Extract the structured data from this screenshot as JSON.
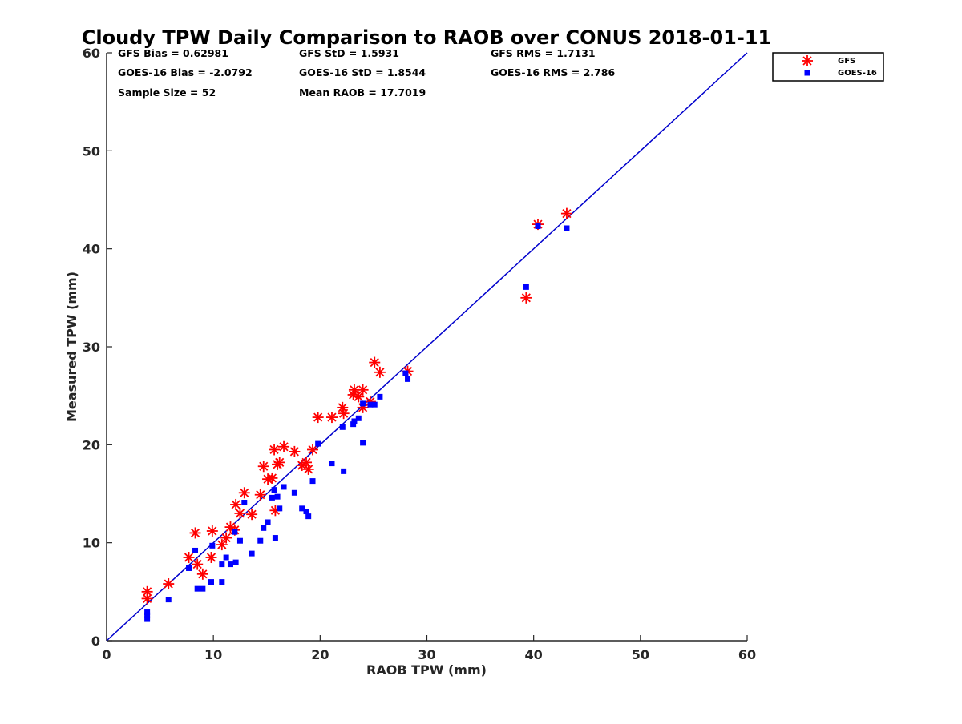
{
  "chart_data": {
    "type": "scatter",
    "title": "Cloudy TPW Daily Comparison to RAOB over CONUS 2018-01-11",
    "xlabel": "RAOB TPW (mm)",
    "ylabel": "Measured TPW (mm)",
    "xlim": [
      0,
      60
    ],
    "ylim": [
      0,
      60
    ],
    "xticks": [
      "0",
      "10",
      "20",
      "30",
      "40",
      "50",
      "60"
    ],
    "yticks": [
      "0",
      "10",
      "20",
      "30",
      "40",
      "50",
      "60"
    ],
    "grid": false,
    "legend_position": "top-right, outside plot",
    "reference_line": {
      "from": [
        0,
        0
      ],
      "to": [
        60,
        60
      ],
      "color": "#0000cc"
    },
    "stats": {
      "gfs_bias": "GFS Bias = 0.62981",
      "goes_bias": "GOES-16 Bias = -2.0792",
      "sample_size": "Sample Size = 52",
      "gfs_std": "GFS StD = 1.5931",
      "goes_std": "GOES-16 StD = 1.8544",
      "mean_raob": "Mean RAOB = 17.7019",
      "gfs_rms": "GFS RMS = 1.7131",
      "goes_rms": "GOES-16 RMS = 2.786"
    },
    "series": [
      {
        "name": "GFS",
        "marker": "asterisk",
        "color": "#ff0000",
        "points": [
          [
            3.8,
            5.0
          ],
          [
            3.8,
            4.3
          ],
          [
            5.8,
            5.8
          ],
          [
            7.7,
            8.5
          ],
          [
            8.3,
            11.0
          ],
          [
            8.5,
            7.8
          ],
          [
            9.0,
            6.8
          ],
          [
            9.8,
            8.5
          ],
          [
            9.9,
            11.2
          ],
          [
            10.8,
            9.8
          ],
          [
            11.2,
            10.5
          ],
          [
            11.6,
            11.6
          ],
          [
            12.0,
            11.3
          ],
          [
            12.1,
            13.9
          ],
          [
            12.5,
            13.0
          ],
          [
            12.9,
            15.1
          ],
          [
            13.6,
            12.9
          ],
          [
            14.4,
            14.9
          ],
          [
            14.7,
            17.8
          ],
          [
            15.1,
            16.5
          ],
          [
            15.5,
            16.6
          ],
          [
            15.7,
            19.5
          ],
          [
            15.8,
            13.3
          ],
          [
            16.0,
            18.0
          ],
          [
            16.2,
            18.2
          ],
          [
            16.6,
            19.8
          ],
          [
            17.6,
            19.3
          ],
          [
            18.3,
            17.9
          ],
          [
            18.7,
            18.2
          ],
          [
            18.9,
            17.5
          ],
          [
            19.3,
            19.5
          ],
          [
            19.8,
            22.8
          ],
          [
            21.1,
            22.8
          ],
          [
            22.1,
            23.8
          ],
          [
            22.2,
            23.2
          ],
          [
            23.1,
            25.1
          ],
          [
            23.2,
            25.6
          ],
          [
            23.6,
            24.9
          ],
          [
            24.0,
            23.8
          ],
          [
            24.0,
            25.6
          ],
          [
            24.7,
            24.4
          ],
          [
            25.1,
            28.4
          ],
          [
            25.6,
            27.4
          ],
          [
            28.2,
            27.5
          ],
          [
            39.3,
            35.0
          ],
          [
            40.4,
            42.5
          ],
          [
            43.1,
            43.6
          ]
        ]
      },
      {
        "name": "GOES-16",
        "marker": "square",
        "color": "#0000ff",
        "points": [
          [
            3.8,
            2.9
          ],
          [
            3.8,
            2.6
          ],
          [
            3.8,
            2.2
          ],
          [
            5.8,
            4.2
          ],
          [
            7.7,
            7.4
          ],
          [
            8.3,
            9.2
          ],
          [
            8.5,
            5.3
          ],
          [
            9.0,
            5.3
          ],
          [
            9.8,
            6.0
          ],
          [
            9.9,
            9.7
          ],
          [
            10.8,
            7.8
          ],
          [
            10.8,
            6.0
          ],
          [
            11.2,
            8.5
          ],
          [
            11.6,
            7.8
          ],
          [
            12.0,
            11.1
          ],
          [
            12.1,
            8.0
          ],
          [
            12.5,
            10.2
          ],
          [
            12.9,
            14.1
          ],
          [
            13.6,
            8.9
          ],
          [
            14.4,
            10.2
          ],
          [
            14.7,
            11.5
          ],
          [
            15.1,
            12.1
          ],
          [
            15.5,
            14.6
          ],
          [
            15.7,
            15.4
          ],
          [
            15.8,
            10.5
          ],
          [
            16.0,
            14.7
          ],
          [
            16.2,
            13.5
          ],
          [
            16.6,
            15.7
          ],
          [
            17.6,
            15.1
          ],
          [
            18.3,
            13.5
          ],
          [
            18.7,
            13.2
          ],
          [
            18.9,
            12.7
          ],
          [
            19.3,
            16.3
          ],
          [
            19.8,
            20.1
          ],
          [
            21.1,
            18.1
          ],
          [
            22.1,
            21.8
          ],
          [
            22.2,
            17.3
          ],
          [
            23.1,
            22.1
          ],
          [
            23.2,
            22.4
          ],
          [
            23.6,
            22.7
          ],
          [
            24.0,
            20.2
          ],
          [
            24.0,
            24.2
          ],
          [
            24.7,
            24.1
          ],
          [
            25.1,
            24.1
          ],
          [
            25.6,
            24.9
          ],
          [
            28.0,
            27.3
          ],
          [
            28.2,
            26.7
          ],
          [
            39.3,
            36.1
          ],
          [
            40.4,
            42.3
          ],
          [
            43.1,
            42.1
          ]
        ]
      }
    ]
  }
}
